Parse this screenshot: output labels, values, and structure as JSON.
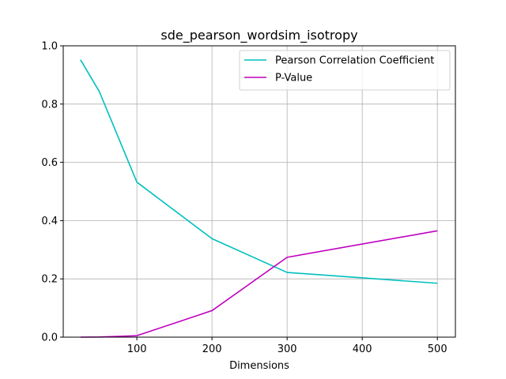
{
  "chart_data": {
    "type": "line",
    "title": "sde_pearson_wordsim_isotropy",
    "xlabel": "Dimensions",
    "ylabel": "",
    "xlim": [
      2,
      524
    ],
    "ylim": [
      0.0,
      1.0
    ],
    "xticks": [
      100,
      200,
      300,
      400,
      500
    ],
    "yticks": [
      0.0,
      0.2,
      0.4,
      0.6,
      0.8,
      1.0
    ],
    "grid": true,
    "legend_position": "top-right",
    "series": [
      {
        "name": "Pearson Correlation Coefficient",
        "color": "#00bfbf",
        "x": [
          25,
          50,
          100,
          200,
          300,
          500
        ],
        "y": [
          0.952,
          0.843,
          0.532,
          0.338,
          0.222,
          0.185
        ]
      },
      {
        "name": "P-Value",
        "color": "#bf00bf",
        "x": [
          25,
          50,
          100,
          200,
          300,
          500
        ],
        "y": [
          0.0,
          0.0005,
          0.005,
          0.091,
          0.274,
          0.365
        ]
      }
    ]
  }
}
